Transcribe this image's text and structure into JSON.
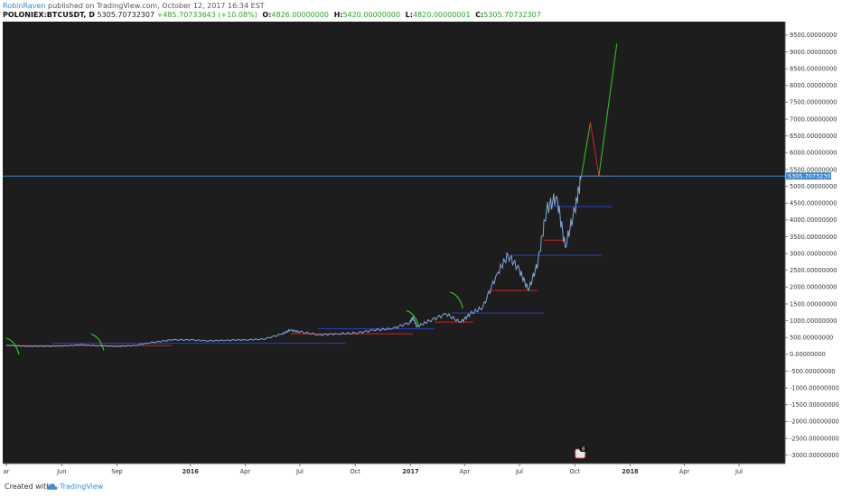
{
  "header": {
    "author": "RobinRaven",
    "published": "published on TradingView.com, October 12, 2017 16:34 EST",
    "symbol": "POLONIEX:BTCUSDT, D",
    "last": "5305.70732307",
    "change": "+485.70733643 (+10.08%)",
    "open_label": "O:",
    "open": "4826.00000000",
    "high_label": "H:",
    "high": "5420.00000000",
    "low_label": "L:",
    "low": "4820.00000001",
    "close_label": "C:",
    "close": "5305.70732307"
  },
  "footer": {
    "created": "Created with",
    "brand": "TradingView"
  },
  "colors": {
    "background": "#1d1d1d",
    "price": "#7fa7d6",
    "support_red": "#cc2222",
    "support_blue": "#2a3fc8",
    "projection_green": "#33bb22",
    "projection_red": "#cc2222",
    "marker_green": "#33cc22",
    "current_line": "#3a86c8",
    "label_bg": "#3a86c8"
  },
  "icons": {
    "events": "event-flag-icon",
    "logo": "tradingview-cloud-icon"
  },
  "chart_data": {
    "type": "line",
    "title": "",
    "xlabel": "",
    "ylabel": "",
    "ylim": [
      -3250,
      9900
    ],
    "yticks": [
      "9500.00000000",
      "9000.00000000",
      "8500.00000000",
      "8000.00000000",
      "7500.00000000",
      "7000.00000000",
      "6500.00000000",
      "6000.00000000",
      "5500.00000000",
      "5000.00000000",
      "4500.00000000",
      "4000.00000000",
      "3500.00000000",
      "3000.00000000",
      "2500.00000000",
      "2000.00000000",
      "1500.00000000",
      "1000.00000000",
      "500.00000000",
      "0.00000000",
      "-500.00000000",
      "-1000.00000000",
      "-1500.00000000",
      "-2000.00000000",
      "-2500.00000000",
      "-3000.00000000"
    ],
    "xticks": [
      {
        "label": "ar",
        "date": "2015-03-01",
        "bold": false
      },
      {
        "label": "Jun",
        "date": "2015-06-01",
        "bold": false
      },
      {
        "label": "Sep",
        "date": "2015-09-01",
        "bold": false
      },
      {
        "label": "2016",
        "date": "2016-01-01",
        "bold": true
      },
      {
        "label": "Apr",
        "date": "2016-04-01",
        "bold": false
      },
      {
        "label": "Jul",
        "date": "2016-07-01",
        "bold": false
      },
      {
        "label": "Oct",
        "date": "2016-10-01",
        "bold": false
      },
      {
        "label": "2017",
        "date": "2017-01-01",
        "bold": true
      },
      {
        "label": "Apr",
        "date": "2017-04-01",
        "bold": false
      },
      {
        "label": "Jul",
        "date": "2017-07-01",
        "bold": false
      },
      {
        "label": "Oct",
        "date": "2017-10-01",
        "bold": false
      },
      {
        "label": "2018",
        "date": "2018-01-01",
        "bold": true
      },
      {
        "label": "Apr",
        "date": "2018-04-01",
        "bold": false
      },
      {
        "label": "Jul",
        "date": "2018-07-01",
        "bold": false
      }
    ],
    "series": [
      {
        "values": [
          [
            "2015-03-01",
            270
          ],
          [
            "2015-04-01",
            240
          ],
          [
            "2015-05-01",
            240
          ],
          [
            "2015-06-01",
            245
          ],
          [
            "2015-07-01",
            285
          ],
          [
            "2015-08-01",
            255
          ],
          [
            "2015-09-01",
            235
          ],
          [
            "2015-10-01",
            265
          ],
          [
            "2015-11-01",
            360
          ],
          [
            "2015-12-01",
            430
          ],
          [
            "2016-01-01",
            430
          ],
          [
            "2016-02-01",
            400
          ],
          [
            "2016-03-01",
            420
          ],
          [
            "2016-04-01",
            430
          ],
          [
            "2016-05-01",
            450
          ],
          [
            "2016-06-01",
            600
          ],
          [
            "2016-06-15",
            720
          ],
          [
            "2016-07-01",
            670
          ],
          [
            "2016-08-01",
            580
          ],
          [
            "2016-09-01",
            610
          ],
          [
            "2016-10-01",
            630
          ],
          [
            "2016-11-01",
            720
          ],
          [
            "2016-12-01",
            760
          ],
          [
            "2016-12-31",
            950
          ],
          [
            "2017-01-05",
            1100
          ],
          [
            "2017-01-12",
            820
          ],
          [
            "2017-02-01",
            1000
          ],
          [
            "2017-03-01",
            1200
          ],
          [
            "2017-03-25",
            950
          ],
          [
            "2017-04-10",
            1200
          ],
          [
            "2017-05-01",
            1400
          ],
          [
            "2017-05-25",
            2400
          ],
          [
            "2017-06-12",
            2950
          ],
          [
            "2017-07-01",
            2500
          ],
          [
            "2017-07-16",
            1900
          ],
          [
            "2017-08-01",
            2750
          ],
          [
            "2017-08-15",
            4300
          ],
          [
            "2017-09-01",
            4700
          ],
          [
            "2017-09-15",
            3200
          ],
          [
            "2017-10-01",
            4300
          ],
          [
            "2017-10-12",
            5305.7
          ]
        ]
      }
    ],
    "current_price": 5305.70732307,
    "current_price_label": "5305.70732307",
    "levels": [
      {
        "color": "red",
        "value": 260,
        "from": "2015-03-01",
        "to": "2015-12-01"
      },
      {
        "color": "blue",
        "value": 330,
        "from": "2015-05-15",
        "to": "2016-09-15"
      },
      {
        "color": "red",
        "value": 610,
        "from": "2016-06-15",
        "to": "2017-01-05"
      },
      {
        "color": "blue",
        "value": 760,
        "from": "2016-08-01",
        "to": "2017-02-10"
      },
      {
        "color": "red",
        "value": 960,
        "from": "2017-02-10",
        "to": "2017-04-15"
      },
      {
        "color": "blue",
        "value": 1230,
        "from": "2017-03-10",
        "to": "2017-08-10"
      },
      {
        "color": "red",
        "value": 1900,
        "from": "2017-05-10",
        "to": "2017-08-01"
      },
      {
        "color": "blue",
        "value": 2950,
        "from": "2017-06-15",
        "to": "2017-11-15"
      },
      {
        "color": "red",
        "value": 3400,
        "from": "2017-08-10",
        "to": "2017-09-15"
      },
      {
        "color": "blue",
        "value": 4400,
        "from": "2017-08-20",
        "to": "2017-12-01"
      },
      {
        "color": "red",
        "value": 5305.7,
        "from": "2017-10-12",
        "to": "2017-12-01"
      }
    ],
    "projection": {
      "green_up": [
        [
          "2017-10-12",
          5305.7
        ],
        [
          "2017-10-27",
          6900
        ]
      ],
      "red_down": [
        [
          "2017-10-27",
          6900
        ],
        [
          "2017-11-10",
          5305.7
        ]
      ],
      "green_up2": [
        [
          "2017-11-10",
          5305.7
        ],
        [
          "2017-12-10",
          9250
        ]
      ]
    },
    "markers": [
      [
        "2015-03-01",
        480
      ],
      [
        "2015-07-20",
        600
      ],
      [
        "2016-12-25",
        1300
      ],
      [
        "2017-03-08",
        1850
      ]
    ],
    "event_flag": {
      "label": "8",
      "date": "2017-10-01"
    }
  }
}
